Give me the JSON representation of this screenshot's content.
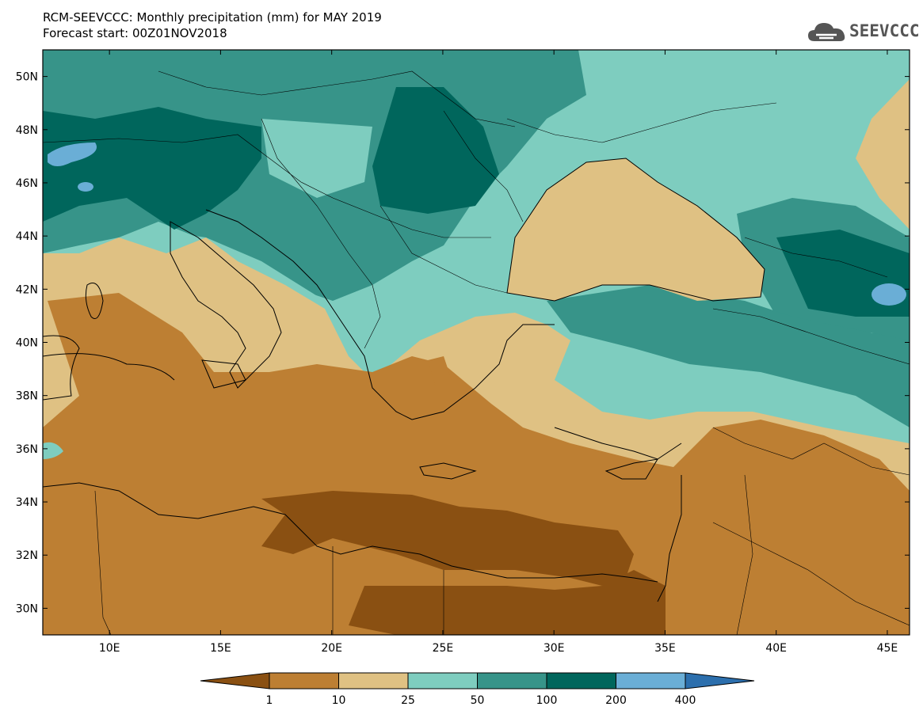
{
  "title": "RCM-SEEVCCC: Monthly precipitation (mm) for MAY 2019",
  "subtitle": "Forecast start: 00Z01NOV2018",
  "logo": {
    "text": "SEEVCCC",
    "icon": "cloud-icon"
  },
  "map": {
    "lon_range": [
      7,
      46
    ],
    "lat_range": [
      29,
      51
    ],
    "lat_ticks": [
      "50N",
      "48N",
      "46N",
      "44N",
      "42N",
      "40N",
      "38N",
      "36N",
      "34N",
      "32N",
      "30N"
    ],
    "lon_ticks": [
      "10E",
      "15E",
      "20E",
      "25E",
      "30E",
      "35E",
      "40E",
      "45E"
    ]
  },
  "colorbar": {
    "labels": [
      "1",
      "10",
      "25",
      "50",
      "100",
      "200",
      "400"
    ],
    "colors": [
      "#8a5012",
      "#bd7f33",
      "#dfc183",
      "#7ecdbf",
      "#379489",
      "#00665c",
      "#6aaed6",
      "#2c6fad"
    ]
  }
}
